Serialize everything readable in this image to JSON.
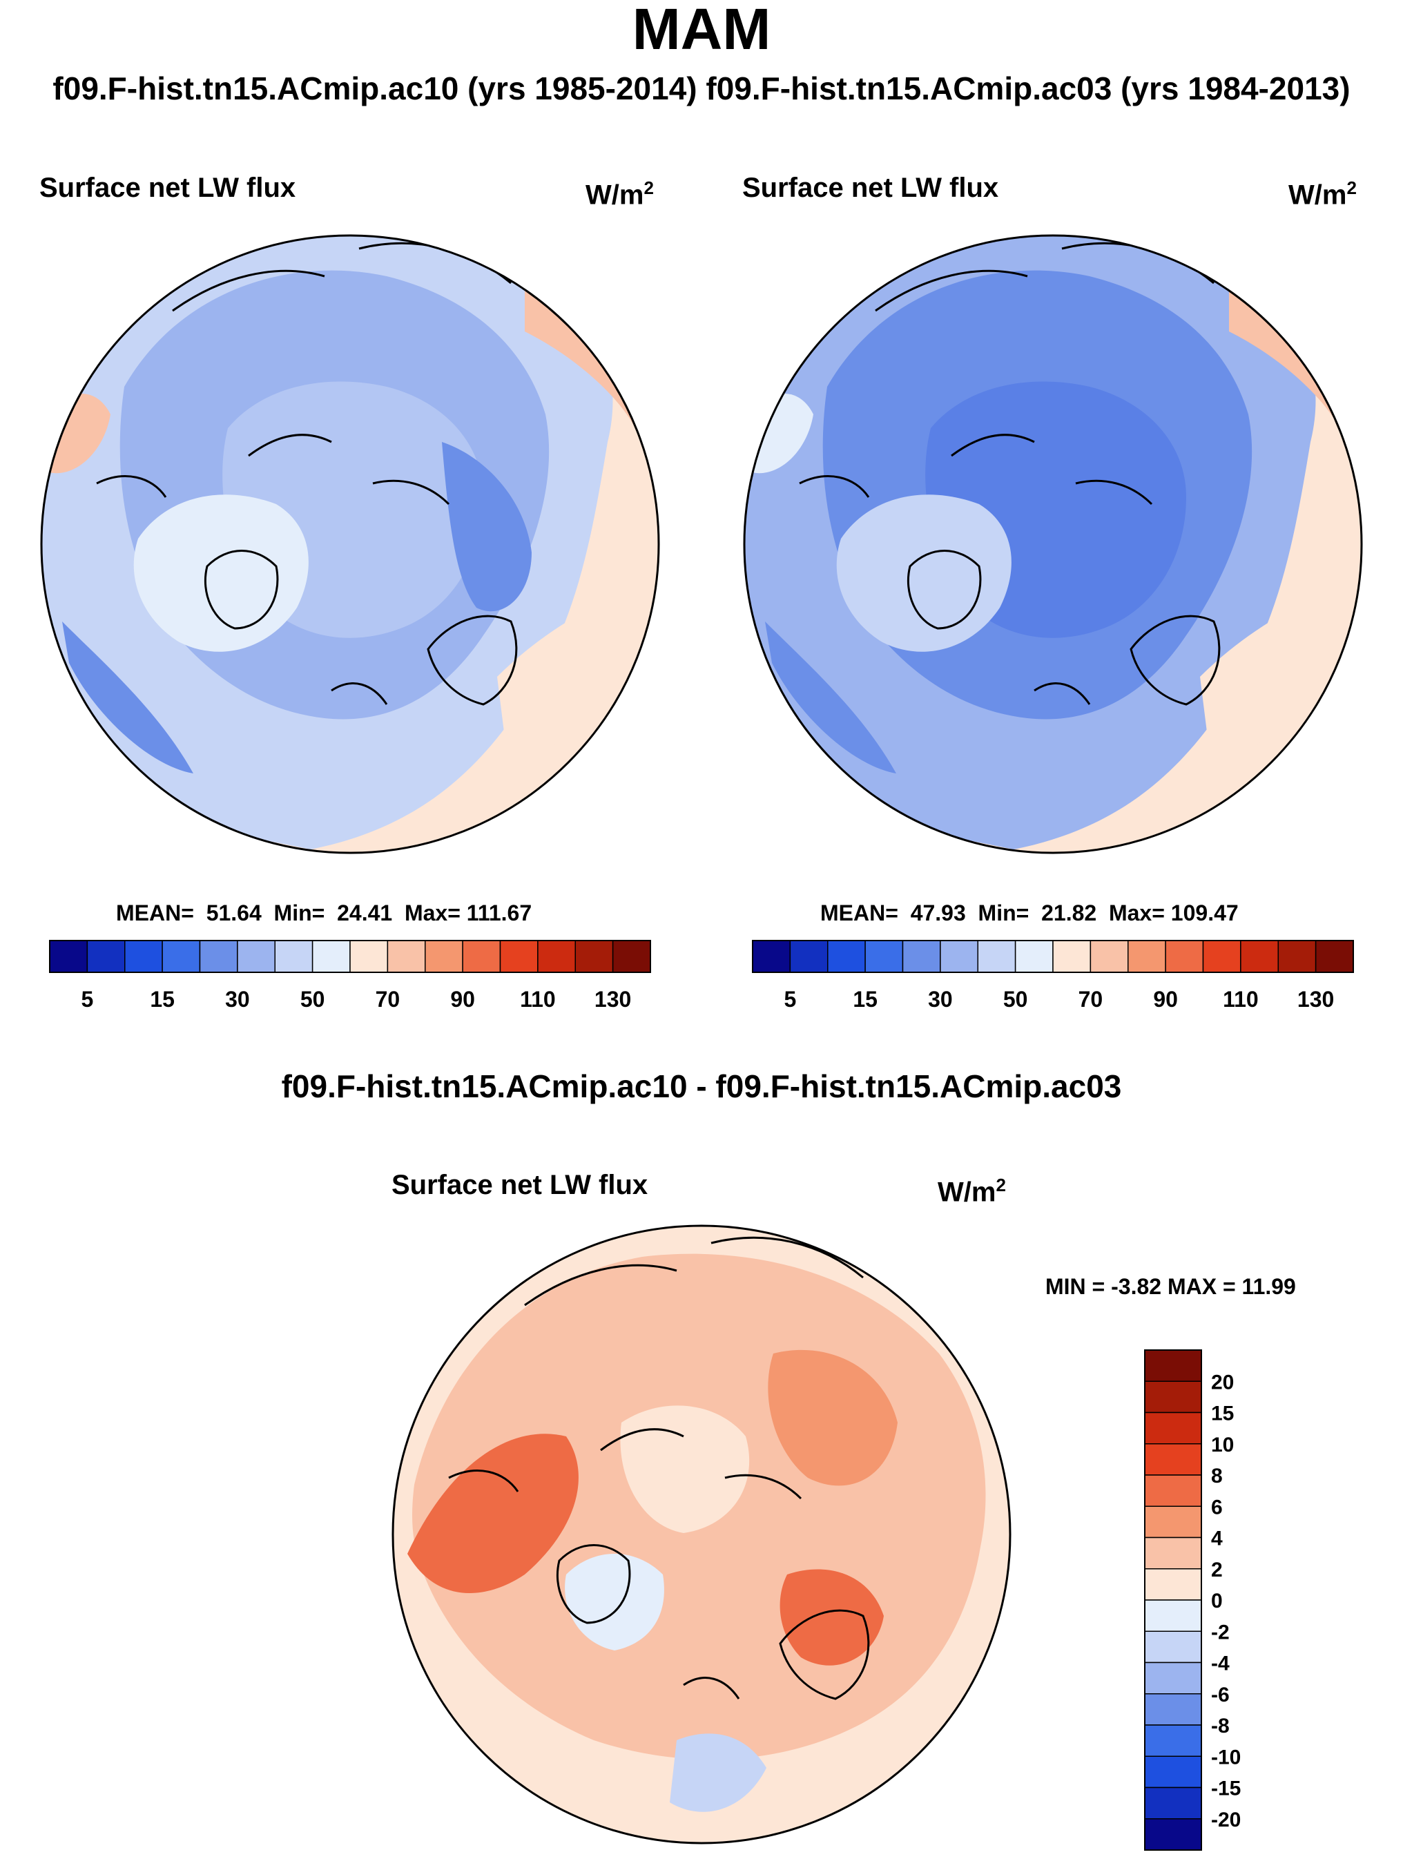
{
  "figure": {
    "title": "MAM",
    "subtitle": "f09.F-hist.tn15.ACmip.ac10 (yrs 1985-2014) f09.F-hist.tn15.ACmip.ac03 (yrs 1984-2013)",
    "diff_title": "f09.F-hist.tn15.ACmip.ac10 - f09.F-hist.tn15.ACmip.ac03"
  },
  "panels": {
    "left": {
      "variable": "Surface net LW flux",
      "units_base": "W/m",
      "units_exp": "2",
      "stats": {
        "mean_label": "MEAN=",
        "mean": "51.64",
        "min_label": "Min=",
        "min": "24.41",
        "max_label": "Max=",
        "max": "111.67"
      }
    },
    "right": {
      "variable": "Surface net LW flux",
      "units_base": "W/m",
      "units_exp": "2",
      "stats": {
        "mean_label": "MEAN=",
        "mean": "47.93",
        "min_label": "Min=",
        "min": "21.82",
        "max_label": "Max=",
        "max": "109.47"
      }
    },
    "diff": {
      "variable": "Surface net LW flux",
      "units_base": "W/m",
      "units_exp": "2",
      "minmax_text": "MIN =  -3.82 MAX =  11.99"
    }
  },
  "chart_data": [
    {
      "type": "heatmap",
      "projection": "north polar stereographic",
      "title": "Surface net LW flux",
      "units": "W/m2",
      "run": "f09.F-hist.tn15.ACmip.ac10 (yrs 1985-2014)",
      "mean": 51.64,
      "min": 24.41,
      "max": 111.67,
      "colorbar": {
        "levels": [
          0,
          5,
          10,
          15,
          20,
          30,
          40,
          50,
          60,
          70,
          80,
          90,
          100,
          110,
          120,
          130
        ],
        "tick_labels": [
          "5",
          "15",
          "30",
          "50",
          "70",
          "90",
          "110",
          "130"
        ],
        "colors": [
          "#08088a",
          "#1230c0",
          "#1e50e0",
          "#3a6ee8",
          "#6b8fe8",
          "#9cb4ef",
          "#c6d5f6",
          "#e4eefb",
          "#fde6d6",
          "#f9c2a8",
          "#f4976f",
          "#ee6b45",
          "#e5411f",
          "#cc2b10",
          "#a41c08",
          "#7a0d05"
        ]
      }
    },
    {
      "type": "heatmap",
      "projection": "north polar stereographic",
      "title": "Surface net LW flux",
      "units": "W/m2",
      "run": "f09.F-hist.tn15.ACmip.ac03 (yrs 1984-2013)",
      "mean": 47.93,
      "min": 21.82,
      "max": 109.47,
      "colorbar": {
        "levels": [
          0,
          5,
          10,
          15,
          20,
          30,
          40,
          50,
          60,
          70,
          80,
          90,
          100,
          110,
          120,
          130
        ],
        "tick_labels": [
          "5",
          "15",
          "30",
          "50",
          "70",
          "90",
          "110",
          "130"
        ],
        "colors": [
          "#08088a",
          "#1230c0",
          "#1e50e0",
          "#3a6ee8",
          "#6b8fe8",
          "#9cb4ef",
          "#c6d5f6",
          "#e4eefb",
          "#fde6d6",
          "#f9c2a8",
          "#f4976f",
          "#ee6b45",
          "#e5411f",
          "#cc2b10",
          "#a41c08",
          "#7a0d05"
        ]
      }
    },
    {
      "type": "heatmap",
      "projection": "north polar stereographic",
      "title": "Surface net LW flux",
      "units": "W/m2",
      "run": "f09.F-hist.tn15.ACmip.ac10 - f09.F-hist.tn15.ACmip.ac03",
      "min": -3.82,
      "max": 11.99,
      "colorbar": {
        "orientation": "vertical",
        "tick_labels": [
          "20",
          "15",
          "10",
          "8",
          "6",
          "4",
          "2",
          "0",
          "-2",
          "-4",
          "-6",
          "-8",
          "-10",
          "-15",
          "-20"
        ],
        "colors": [
          "#7a0d05",
          "#a41c08",
          "#cc2b10",
          "#e5411f",
          "#ee6b45",
          "#f4976f",
          "#f9c2a8",
          "#fde6d6",
          "#e4eefb",
          "#c6d5f6",
          "#9cb4ef",
          "#6b8fe8",
          "#3a6ee8",
          "#1e50e0",
          "#1230c0",
          "#08088a"
        ]
      }
    }
  ]
}
